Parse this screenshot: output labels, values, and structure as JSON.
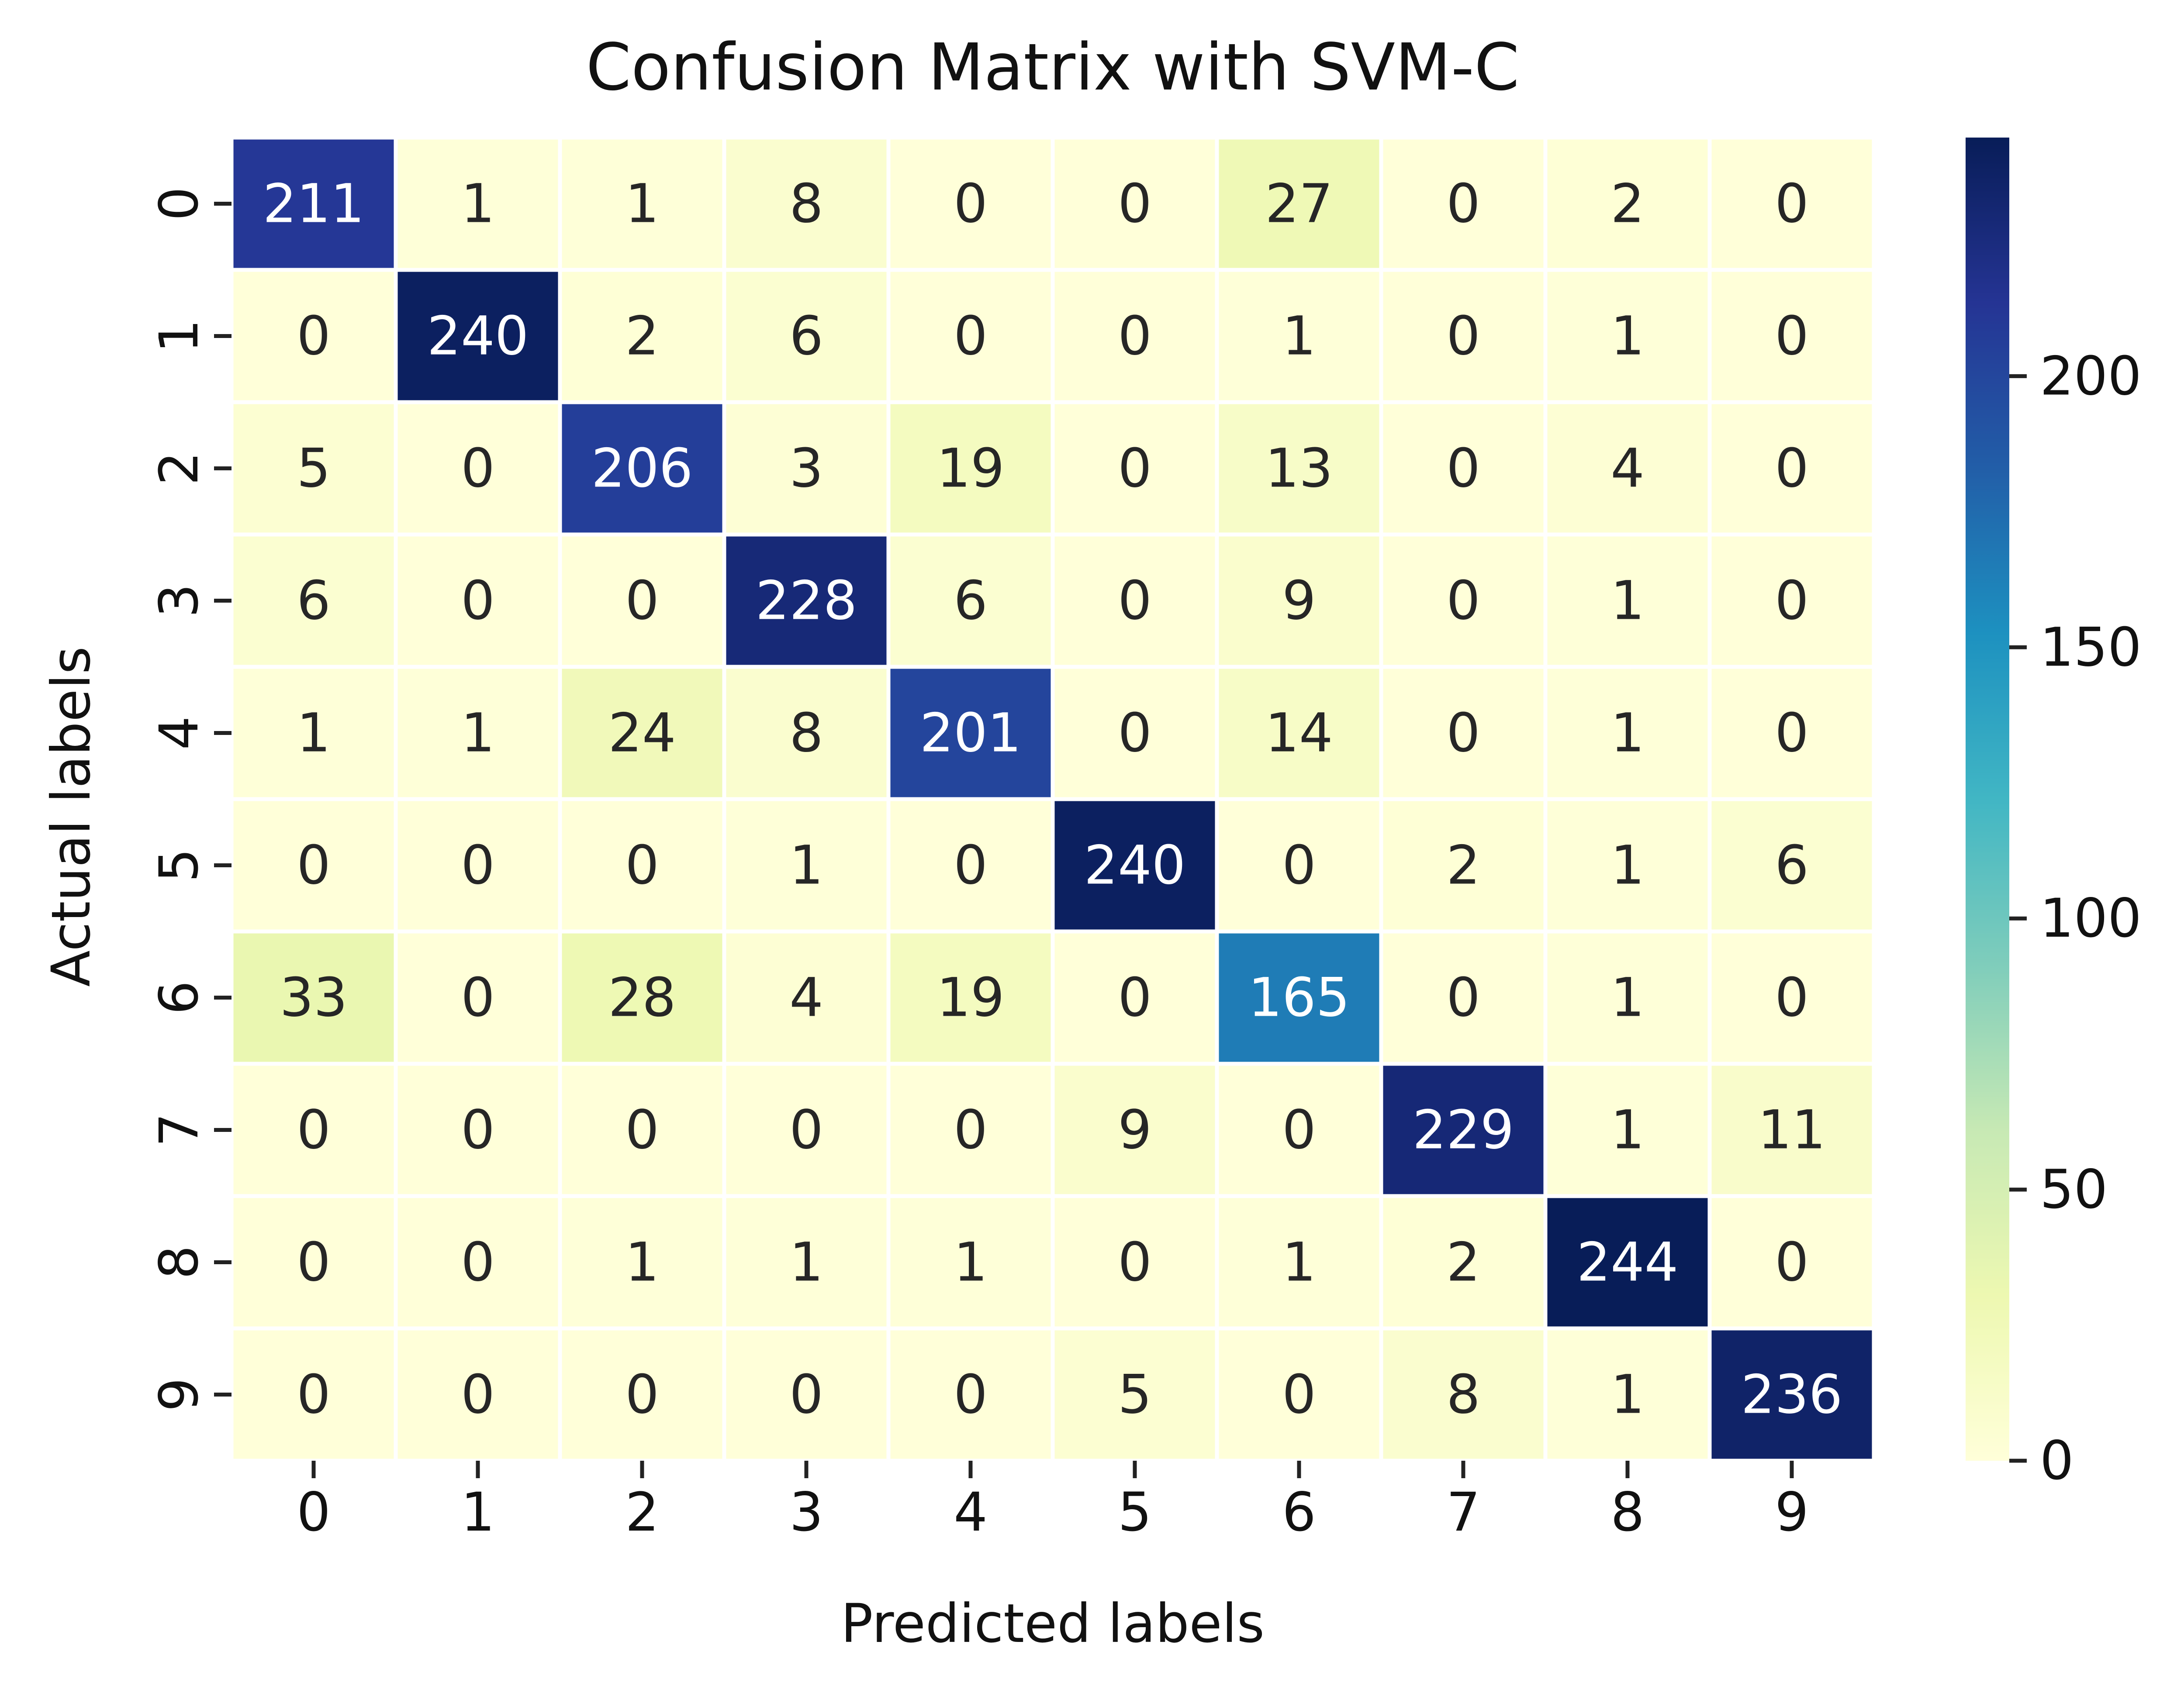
{
  "chart_data": {
    "type": "heatmap",
    "title": "Confusion Matrix with SVM-C",
    "xlabel": "Predicted labels",
    "ylabel": "Actual labels",
    "x_categories": [
      "0",
      "1",
      "2",
      "3",
      "4",
      "5",
      "6",
      "7",
      "8",
      "9"
    ],
    "y_categories": [
      "0",
      "1",
      "2",
      "3",
      "4",
      "5",
      "6",
      "7",
      "8",
      "9"
    ],
    "values": [
      [
        211,
        1,
        1,
        8,
        0,
        0,
        27,
        0,
        2,
        0
      ],
      [
        0,
        240,
        2,
        6,
        0,
        0,
        1,
        0,
        1,
        0
      ],
      [
        5,
        0,
        206,
        3,
        19,
        0,
        13,
        0,
        4,
        0
      ],
      [
        6,
        0,
        0,
        228,
        6,
        0,
        9,
        0,
        1,
        0
      ],
      [
        1,
        1,
        24,
        8,
        201,
        0,
        14,
        0,
        1,
        0
      ],
      [
        0,
        0,
        0,
        1,
        0,
        240,
        0,
        2,
        1,
        6
      ],
      [
        33,
        0,
        28,
        4,
        19,
        0,
        165,
        0,
        1,
        0
      ],
      [
        0,
        0,
        0,
        0,
        0,
        9,
        0,
        229,
        1,
        11
      ],
      [
        0,
        0,
        1,
        1,
        1,
        0,
        1,
        2,
        244,
        0
      ],
      [
        0,
        0,
        0,
        0,
        0,
        5,
        0,
        8,
        1,
        236
      ]
    ],
    "colormap": "YlGnBu",
    "vmin": 0,
    "vmax": 244,
    "colorbar_ticks": [
      0,
      50,
      100,
      150,
      200
    ],
    "grid": false,
    "legend": "colorbar right"
  }
}
